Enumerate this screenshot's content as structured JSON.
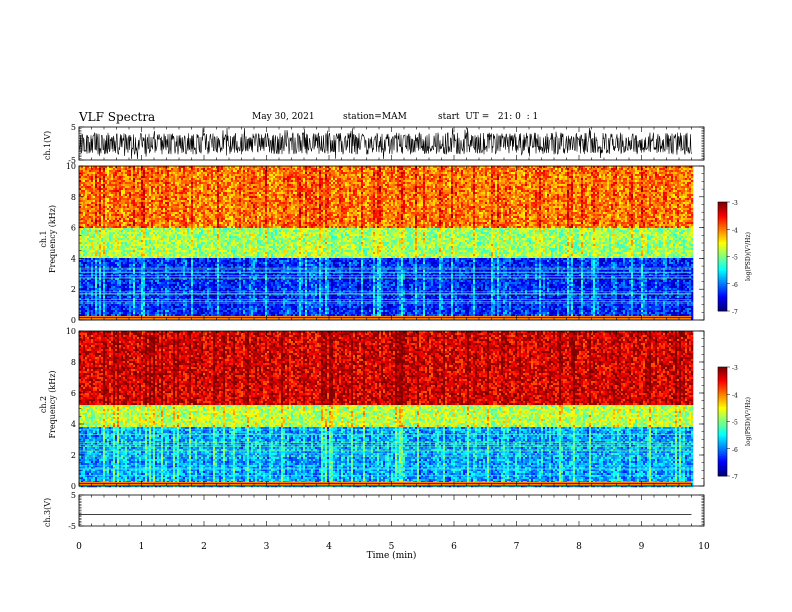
{
  "header": {
    "title": "VLF Spectra",
    "date": "May 30, 2021",
    "station": "station=MAM",
    "start": "start  UT =   21: 0  : 1"
  },
  "chart_data": [
    {
      "type": "line",
      "name": "ch1-waveform",
      "ylabel": "ch.1(V)",
      "ylim": [
        -5,
        5
      ],
      "yticks": [
        "5",
        "-5"
      ],
      "xlim": [
        0,
        10
      ],
      "description": "dense noisy waveform oscillating roughly between -3 and 3 V over 0-9.8 min"
    },
    {
      "type": "heatmap",
      "name": "ch1-spectrogram",
      "ylabel_top": "ch.1",
      "ylabel": "Frequency  (kHz)",
      "ylim": [
        0,
        10
      ],
      "yticks": [
        "0",
        "2",
        "4",
        "6",
        "8",
        "10"
      ],
      "xlim": [
        0,
        10
      ],
      "data_extent_min": 9.8,
      "colorbar": {
        "label": "log(PSD)(V²/Hz)",
        "range": [
          -7,
          -3
        ],
        "ticks": [
          "-3",
          "-4",
          "-5",
          "-6",
          "-7"
        ]
      },
      "bands": [
        {
          "from_khz": 0,
          "to_khz": 4,
          "level": -6.4
        },
        {
          "from_khz": 4,
          "to_khz": 6,
          "level": -4.9
        },
        {
          "from_khz": 6,
          "to_khz": 10,
          "level": -4.0
        }
      ]
    },
    {
      "type": "heatmap",
      "name": "ch2-spectrogram",
      "ylabel_top": "ch.2",
      "ylabel": "Frequency  (kHz)",
      "ylim": [
        0,
        10
      ],
      "yticks": [
        "0",
        "2",
        "4",
        "6",
        "8",
        "10"
      ],
      "xlim": [
        0,
        10
      ],
      "data_extent_min": 9.8,
      "colorbar": {
        "label": "log(PSD)(V²/Hz)",
        "range": [
          -7,
          -3
        ],
        "ticks": [
          "-3",
          "-4",
          "-5",
          "-6",
          "-7"
        ]
      },
      "bands": [
        {
          "from_khz": 0,
          "to_khz": 3.8,
          "level": -5.9
        },
        {
          "from_khz": 3.8,
          "to_khz": 5.2,
          "level": -4.8
        },
        {
          "from_khz": 5.2,
          "to_khz": 10,
          "level": -3.4
        }
      ]
    },
    {
      "type": "line",
      "name": "ch3-waveform",
      "ylabel": "ch.3(V)",
      "ylim": [
        -5,
        5
      ],
      "yticks": [
        "5",
        "-5"
      ],
      "xlim": [
        0,
        10
      ],
      "xlabel": "Time  (min)",
      "xticks": [
        "0",
        "1",
        "2",
        "3",
        "4",
        "5",
        "6",
        "7",
        "8",
        "9",
        "10"
      ],
      "values": [
        {
          "x": 0,
          "y": -1.3
        },
        {
          "x": 9.8,
          "y": -1.3
        }
      ]
    }
  ]
}
